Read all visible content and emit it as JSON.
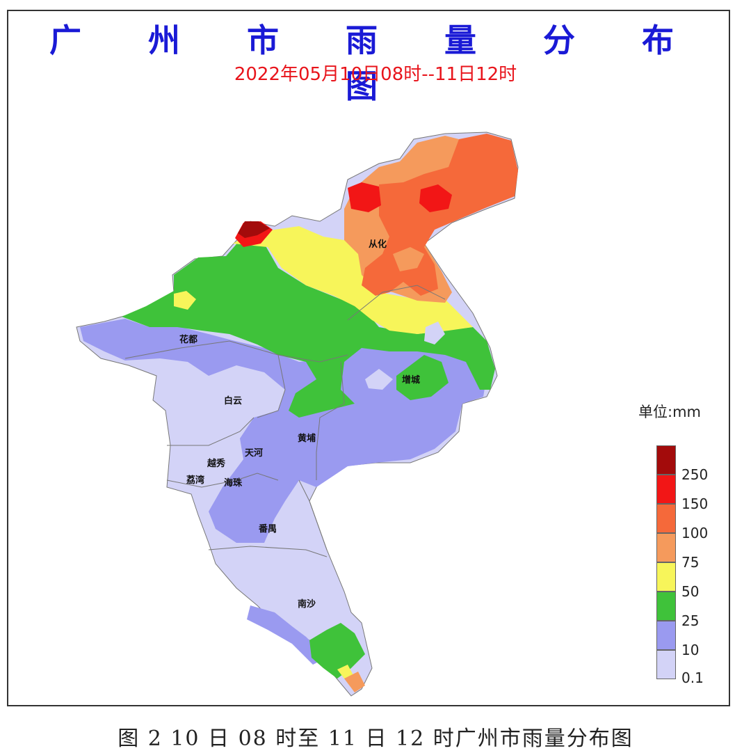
{
  "title": "广 州 市 雨 量 分 布 图",
  "subtitle": "2022年05月10日08时--11日12时",
  "caption": "图 2 10 日 08 时至 11 日 12 时广州市雨量分布图",
  "legend": {
    "unit": "单位:mm",
    "levels": [
      {
        "label": "250",
        "color": "#a30b0b"
      },
      {
        "label": "150",
        "color": "#f21616"
      },
      {
        "label": "100",
        "color": "#f5693a"
      },
      {
        "label": "75",
        "color": "#f59a5c"
      },
      {
        "label": "50",
        "color": "#f7f55a"
      },
      {
        "label": "25",
        "color": "#3fc23a"
      },
      {
        "label": "10",
        "color": "#9a9af0"
      },
      {
        "label": "0.1",
        "color": "#d3d3f7"
      }
    ]
  },
  "districts": [
    "从化",
    "花都",
    "增城",
    "白云",
    "黄埔",
    "天河",
    "越秀",
    "荔湾",
    "海珠",
    "番禺",
    "南沙"
  ]
}
